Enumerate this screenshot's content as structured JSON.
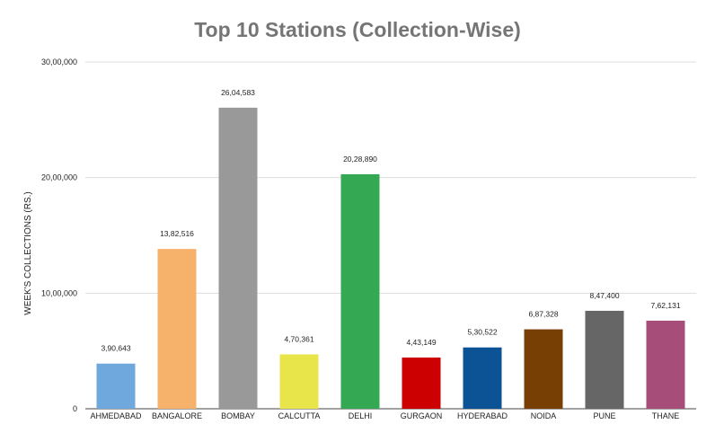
{
  "chart_data": {
    "type": "bar",
    "title": "Top 10 Stations (Collection-Wise)",
    "xlabel": "",
    "ylabel": "WEEK'S COLLECTIONS (RS.)",
    "ylim": [
      0,
      3000000
    ],
    "yticks": [
      0,
      1000000,
      2000000,
      3000000
    ],
    "ytick_labels": [
      "0",
      "10,00,000",
      "20,00,000",
      "30,00,000"
    ],
    "grid": true,
    "legend": "none",
    "categories": [
      "AHMEDABAD",
      "BANGALORE",
      "BOMBAY",
      "CALCUTTA",
      "DELHI",
      "GURGAON",
      "HYDERABAD",
      "NOIDA",
      "PUNE",
      "THANE"
    ],
    "values": [
      390643,
      1382516,
      2604583,
      470361,
      2028890,
      443149,
      530522,
      687328,
      847400,
      762131
    ],
    "value_labels": [
      "3,90,643",
      "13,82,516",
      "26,04,583",
      "4,70,361",
      "20,28,890",
      "4,43,149",
      "5,30,522",
      "6,87,328",
      "8,47,400",
      "7,62,131"
    ],
    "colors": [
      "#6fa8dc",
      "#f6b26b",
      "#999999",
      "#e8e54a",
      "#34a853",
      "#cc0000",
      "#0b5394",
      "#783f04",
      "#666666",
      "#a64d79"
    ]
  }
}
